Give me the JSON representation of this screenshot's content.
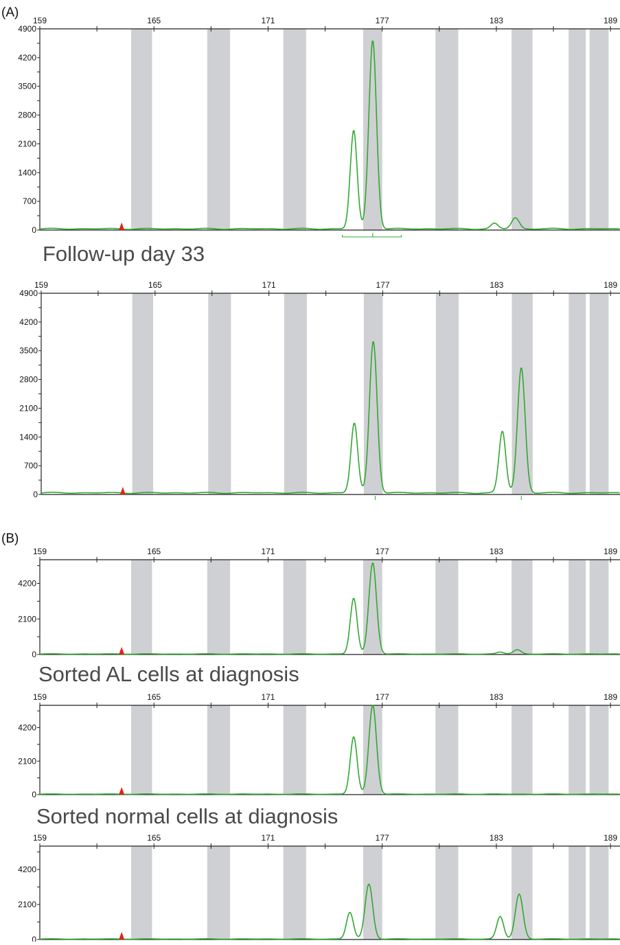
{
  "panel_labels": {
    "a": "(A)",
    "b": "(B)"
  },
  "captions": {
    "followup": "Follow-up day 33",
    "sorted_al": "Sorted AL cells at diagnosis",
    "sorted_normal": "Sorted normal cells at diagnosis"
  },
  "colors": {
    "trace": "#2fa82f",
    "bin": "#cfd0d3",
    "marker": "#e0231b",
    "axis": "#222222"
  },
  "chart_data": [
    {
      "type": "line",
      "x_ticks": [
        159,
        165,
        171,
        177,
        183,
        189
      ],
      "y_ticks": [
        0,
        700,
        1400,
        2100,
        2800,
        3500,
        4200,
        4900
      ],
      "xlim": [
        159,
        189.5
      ],
      "ylim": [
        0,
        4900
      ],
      "bins": [
        [
          163.8,
          164.9
        ],
        [
          167.8,
          169.0
        ],
        [
          171.8,
          173.0
        ],
        [
          176.0,
          177.0
        ],
        [
          179.8,
          181.0
        ],
        [
          183.8,
          184.9
        ],
        [
          186.8,
          187.7
        ],
        [
          187.9,
          188.9
        ]
      ],
      "marker_x": 163.3,
      "baseline": 30,
      "peaks": [
        {
          "x": 175.5,
          "y": 2400,
          "w": 0.18
        },
        {
          "x": 176.5,
          "y": 4600,
          "w": 0.2
        },
        {
          "x": 182.9,
          "y": 130,
          "w": 0.18
        },
        {
          "x": 184.0,
          "y": 270,
          "w": 0.2
        }
      ]
    },
    {
      "type": "line",
      "x_ticks": [
        159,
        165,
        171,
        177,
        183,
        189
      ],
      "y_ticks": [
        0,
        700,
        1400,
        2100,
        2800,
        3500,
        4200,
        4900
      ],
      "xlim": [
        159,
        189.5
      ],
      "ylim": [
        0,
        4900
      ],
      "bins": [
        [
          163.8,
          164.9
        ],
        [
          167.8,
          169.0
        ],
        [
          171.8,
          173.0
        ],
        [
          176.0,
          177.0
        ],
        [
          179.8,
          181.0
        ],
        [
          183.8,
          184.9
        ],
        [
          186.8,
          187.7
        ],
        [
          187.9,
          188.9
        ]
      ],
      "marker_x": 163.3,
      "baseline": 40,
      "peaks": [
        {
          "x": 175.5,
          "y": 1700,
          "w": 0.18
        },
        {
          "x": 176.5,
          "y": 3700,
          "w": 0.2
        },
        {
          "x": 183.3,
          "y": 1500,
          "w": 0.18
        },
        {
          "x": 184.3,
          "y": 3050,
          "w": 0.2
        }
      ]
    },
    {
      "type": "line",
      "x_ticks": [
        159,
        165,
        171,
        177,
        183,
        189
      ],
      "y_ticks": [
        0,
        2100,
        4200
      ],
      "xlim": [
        159,
        189.5
      ],
      "ylim": [
        0,
        5600
      ],
      "bins": [
        [
          163.8,
          164.9
        ],
        [
          167.8,
          169.0
        ],
        [
          171.8,
          173.0
        ],
        [
          176.0,
          177.0
        ],
        [
          179.8,
          181.0
        ],
        [
          183.8,
          184.9
        ],
        [
          186.8,
          187.7
        ],
        [
          187.9,
          188.9
        ]
      ],
      "marker_x": 163.3,
      "baseline": 30,
      "peaks": [
        {
          "x": 175.5,
          "y": 3300,
          "w": 0.18
        },
        {
          "x": 176.5,
          "y": 5400,
          "w": 0.2
        },
        {
          "x": 183.2,
          "y": 110,
          "w": 0.18
        },
        {
          "x": 184.1,
          "y": 250,
          "w": 0.2
        }
      ]
    },
    {
      "type": "line",
      "x_ticks": [
        159,
        165,
        171,
        177,
        183,
        189
      ],
      "y_ticks": [
        0,
        2100,
        4200
      ],
      "xlim": [
        159,
        189.5
      ],
      "ylim": [
        0,
        5600
      ],
      "bins": [
        [
          163.8,
          164.9
        ],
        [
          167.8,
          169.0
        ],
        [
          171.8,
          173.0
        ],
        [
          176.0,
          177.0
        ],
        [
          179.8,
          181.0
        ],
        [
          183.8,
          184.9
        ],
        [
          186.8,
          187.7
        ],
        [
          187.9,
          188.9
        ]
      ],
      "marker_x": 163.3,
      "baseline": 30,
      "peaks": [
        {
          "x": 175.5,
          "y": 3600,
          "w": 0.18
        },
        {
          "x": 176.5,
          "y": 5600,
          "w": 0.2
        }
      ]
    },
    {
      "type": "line",
      "x_ticks": [
        159,
        165,
        171,
        177,
        183,
        189
      ],
      "y_ticks": [
        0,
        2100,
        4200
      ],
      "xlim": [
        159,
        189.5
      ],
      "ylim": [
        0,
        5600
      ],
      "bins": [
        [
          163.8,
          164.9
        ],
        [
          167.8,
          169.0
        ],
        [
          171.8,
          173.0
        ],
        [
          176.0,
          177.0
        ],
        [
          179.8,
          181.0
        ],
        [
          183.8,
          184.9
        ],
        [
          186.8,
          187.7
        ],
        [
          187.9,
          188.9
        ]
      ],
      "marker_x": 163.3,
      "baseline": 30,
      "peaks": [
        {
          "x": 175.3,
          "y": 1600,
          "w": 0.18
        },
        {
          "x": 176.3,
          "y": 3300,
          "w": 0.2
        },
        {
          "x": 183.2,
          "y": 1350,
          "w": 0.18
        },
        {
          "x": 184.2,
          "y": 2700,
          "w": 0.2
        }
      ]
    }
  ]
}
